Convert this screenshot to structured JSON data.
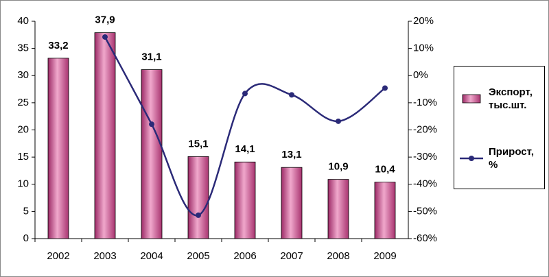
{
  "chart_data": {
    "type": "bar",
    "categories": [
      "2002",
      "2003",
      "2004",
      "2005",
      "2006",
      "2007",
      "2008",
      "2009"
    ],
    "series": [
      {
        "name": "Экспорт, тыс.шт.",
        "type": "bar",
        "color": "#c4508c",
        "values": [
          33.2,
          37.9,
          31.1,
          15.1,
          14.1,
          13.1,
          10.9,
          10.4
        ],
        "value_labels": [
          "33,2",
          "37,9",
          "31,1",
          "15,1",
          "14,1",
          "13,1",
          "10,9",
          "10,4"
        ]
      },
      {
        "name": "Прирост, %",
        "type": "line",
        "axis": "y2",
        "color": "#2b2a78",
        "values": [
          null,
          14.2,
          -17.9,
          -51.4,
          -6.6,
          -7.1,
          -16.8,
          -4.6
        ]
      }
    ],
    "ylim": [
      0,
      40
    ],
    "yticks": [
      0,
      5,
      10,
      15,
      20,
      25,
      30,
      35,
      40
    ],
    "y2lim": [
      -60,
      20
    ],
    "y2ticks": [
      {
        "value": -60,
        "label": "-60%"
      },
      {
        "value": -50,
        "label": "-50%"
      },
      {
        "value": -40,
        "label": "-40%"
      },
      {
        "value": -30,
        "label": "-30%"
      },
      {
        "value": -20,
        "label": "-20%"
      },
      {
        "value": -10,
        "label": "-10%"
      },
      {
        "value": 0,
        "label": "0%"
      },
      {
        "value": 10,
        "label": "10%"
      },
      {
        "value": 20,
        "label": "20%"
      }
    ],
    "legend": "right"
  }
}
